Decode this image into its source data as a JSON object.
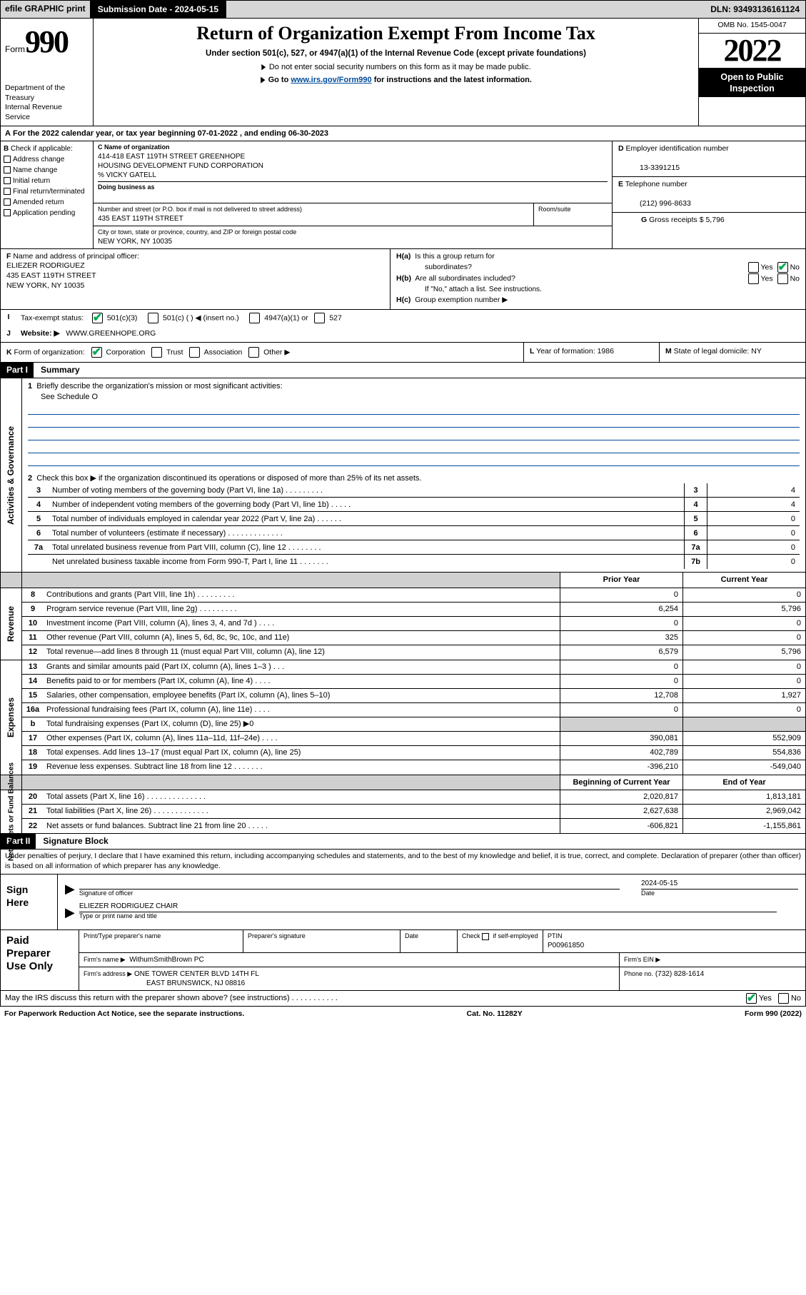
{
  "topbar": {
    "efile": "efile GRAPHIC print",
    "submission": "Submission Date - 2024-05-15",
    "dln": "DLN: 93493136161124"
  },
  "header": {
    "form_prefix": "Form",
    "form_number": "990",
    "dept_1": "Department of the Treasury",
    "dept_2": "Internal Revenue Service",
    "title": "Return of Organization Exempt From Income Tax",
    "sub1": "Under section 501(c), 527, or 4947(a)(1) of the Internal Revenue Code (except private foundations)",
    "sub2": "Do not enter social security numbers on this form as it may be made public.",
    "sub3_a": "Go to ",
    "sub3_link": "www.irs.gov/Form990",
    "sub3_b": " for instructions and the latest information.",
    "omb": "OMB No. 1545-0047",
    "taxyear": "2022",
    "open1": "Open to Public",
    "open2": "Inspection"
  },
  "rowA": {
    "text": "For the 2022 calendar year, or tax year beginning 07-01-2022    , and ending 06-30-2023"
  },
  "boxB": {
    "heading": "Check if applicable:",
    "items": [
      "Address change",
      "Name change",
      "Initial return",
      "Final return/terminated",
      "Amended return",
      "Application pending"
    ]
  },
  "boxC": {
    "lbl_name": "Name of organization",
    "name1": "414-418 EAST 119TH STREET GREENHOPE",
    "name2": "HOUSING DEVELOPMENT FUND CORPORATION",
    "name3": "% VICKY GATELL",
    "dba_lbl": "Doing business as",
    "addr_lbl": "Number and street (or P.O. box if mail is not delivered to street address)",
    "addr": "435 EAST 119TH STREET",
    "room_lbl": "Room/suite",
    "city_lbl": "City or town, state or province, country, and ZIP or foreign postal code",
    "city": "NEW YORK, NY  10035"
  },
  "boxD": {
    "lbl": "Employer identification number",
    "val": "13-3391215"
  },
  "boxE": {
    "lbl": "Telephone number",
    "val": "(212) 996-8633"
  },
  "boxG": {
    "lbl": "Gross receipts $",
    "val": "5,796"
  },
  "boxF": {
    "lbl": "Name and address of principal officer:",
    "name": "ELIEZER RODRIGUEZ",
    "addr1": "435 EAST 119TH STREET",
    "addr2": "NEW YORK, NY  10035"
  },
  "boxH": {
    "a_lbl": "Is this a group return for",
    "a_lbl2": "subordinates?",
    "b_lbl": "Are all subordinates included?",
    "b_note": "If \"No,\" attach a list. See instructions.",
    "c_lbl": "Group exemption number ▶"
  },
  "rowI": {
    "lbl": "Tax-exempt status:",
    "opt1": "501(c)(3)",
    "opt2": "501(c) (   ) ◀ (insert no.)",
    "opt3": "4947(a)(1) or",
    "opt4": "527"
  },
  "rowJ": {
    "lbl": "Website: ▶",
    "val": "WWW.GREENHOPE.ORG"
  },
  "rowK": {
    "lbl": "Form of organization:",
    "opts": [
      "Corporation",
      "Trust",
      "Association",
      "Other ▶"
    ]
  },
  "rowL": {
    "lbl": "Year of formation:",
    "val": "1986"
  },
  "rowM": {
    "lbl": "State of legal domicile:",
    "val": "NY"
  },
  "partI_hdr": "Part I",
  "partI_title": "Summary",
  "governance": {
    "label": "Activities & Governance",
    "line1_lbl": "Briefly describe the organization's mission or most significant activities:",
    "line1_val": "See Schedule O",
    "line2": "Check this box ▶        if  the organization discontinued its operations or disposed of more than 25% of its net assets.",
    "rows": [
      {
        "n": "3",
        "txt": "Number of voting members  of the governing body (Part VI, line 1a)  .   .   .   .   .   .   .   .   .",
        "box": "3",
        "val": "4"
      },
      {
        "n": "4",
        "txt": "Number of independent voting members of the governing body (Part VI, line 1b)   .   .   .   .   .",
        "box": "4",
        "val": "4"
      },
      {
        "n": "5",
        "txt": "Total number of individuals employed in calendar year 2022 (Part V, line 2a)  .   .   .   .   .   .",
        "box": "5",
        "val": "0"
      },
      {
        "n": "6",
        "txt": "Total number of volunteers (estimate if necessary)  .   .   .   .   .   .   .   .   .   .   .   .   .",
        "box": "6",
        "val": "0"
      },
      {
        "n": "7a",
        "txt": "Total unrelated business revenue from Part VIII, column (C), line 12  .   .   .   .   .   .   .   .",
        "box": "7a",
        "val": "0"
      },
      {
        "n": "",
        "txt": "Net unrelated business taxable income from Form 990-T, Part I, line 11  .   .   .   .   .   .   .",
        "box": "7b",
        "val": "0"
      }
    ]
  },
  "col_hdr_prior": "Prior Year",
  "col_hdr_current": "Current Year",
  "revenue": {
    "label": "Revenue",
    "rows": [
      {
        "n": "8",
        "txt": "Contributions and grants (Part VIII, line 1h)   .   .   .   .   .   .   .   .   .",
        "prior": "0",
        "curr": "0"
      },
      {
        "n": "9",
        "txt": "Program service revenue (Part VIII, line 2g)  .   .   .   .   .   .   .   .   .",
        "prior": "6,254",
        "curr": "5,796"
      },
      {
        "n": "10",
        "txt": "Investment income (Part VIII, column (A), lines 3, 4, and 7d )  .   .   .   .",
        "prior": "0",
        "curr": "0"
      },
      {
        "n": "11",
        "txt": "Other revenue (Part VIII, column (A), lines 5, 6d, 8c, 9c, 10c, and 11e)",
        "prior": "325",
        "curr": "0"
      },
      {
        "n": "12",
        "txt": "Total revenue—add lines 8 through 11 (must equal Part VIII, column (A), line 12)",
        "prior": "6,579",
        "curr": "5,796"
      }
    ]
  },
  "expenses": {
    "label": "Expenses",
    "rows": [
      {
        "n": "13",
        "txt": "Grants and similar amounts paid (Part IX, column (A), lines 1–3 )   .   .   .",
        "prior": "0",
        "curr": "0"
      },
      {
        "n": "14",
        "txt": "Benefits paid to or for members (Part IX, column (A), line 4)  .   .   .   .",
        "prior": "0",
        "curr": "0"
      },
      {
        "n": "15",
        "txt": "Salaries, other compensation, employee benefits (Part IX, column (A), lines 5–10)",
        "prior": "12,708",
        "curr": "1,927"
      },
      {
        "n": "16a",
        "txt": "Professional fundraising fees (Part IX, column (A), line 11e)  .   .   .   .",
        "prior": "0",
        "curr": "0"
      },
      {
        "n": "b",
        "txt": "Total fundraising expenses (Part IX, column (D), line 25) ▶0",
        "prior": "",
        "curr": "",
        "grey": true
      },
      {
        "n": "17",
        "txt": "Other expenses (Part IX, column (A), lines 11a–11d, 11f–24e)  .   .   .   .",
        "prior": "390,081",
        "curr": "552,909"
      },
      {
        "n": "18",
        "txt": "Total expenses. Add lines 13–17 (must equal Part IX, column (A), line 25)",
        "prior": "402,789",
        "curr": "554,836"
      },
      {
        "n": "19",
        "txt": "Revenue less expenses. Subtract line 18 from line 12  .   .   .   .   .   .   .",
        "prior": "-396,210",
        "curr": "-549,040"
      }
    ]
  },
  "col_hdr_boy": "Beginning of Current Year",
  "col_hdr_eoy": "End of Year",
  "netassets": {
    "label": "Net Assets or Fund Balances",
    "rows": [
      {
        "n": "20",
        "txt": "Total assets (Part X, line 16)  .   .   .   .   .   .   .   .   .   .   .   .   .   .",
        "prior": "2,020,817",
        "curr": "1,813,181"
      },
      {
        "n": "21",
        "txt": "Total liabilities (Part X, line 26)  .   .   .   .   .   .   .   .   .   .   .   .   .",
        "prior": "2,627,638",
        "curr": "2,969,042"
      },
      {
        "n": "22",
        "txt": "Net assets or fund balances. Subtract line 21 from line 20  .   .   .   .   .",
        "prior": "-606,821",
        "curr": "-1,155,861"
      }
    ]
  },
  "partII_hdr": "Part II",
  "partII_title": "Signature Block",
  "disclaimer": "Under penalties of perjury, I declare that I have examined this return, including accompanying schedules and statements, and to the best of my knowledge and belief, it is true, correct, and complete. Declaration of preparer (other than officer) is based on all information of which preparer has any knowledge.",
  "sign": {
    "here": "Sign Here",
    "sig_lbl": "Signature of officer",
    "date_val": "2024-05-15",
    "date_lbl": "Date",
    "name_val": "ELIEZER RODRIGUEZ  CHAIR",
    "name_lbl": "Type or print name and title"
  },
  "prep": {
    "left": "Paid Preparer Use Only",
    "r1c1_lbl": "Print/Type preparer's name",
    "r1c2_lbl": "Preparer's signature",
    "r1c3_lbl": "Date",
    "r1c4_lbl": "Check         if self-employed",
    "r1c5_lbl": "PTIN",
    "r1c5_val": "P00961850",
    "r2c1_lbl": "Firm's name      ▶",
    "r2c1_val": "WithumSmithBrown PC",
    "r2c2_lbl": "Firm's EIN ▶",
    "r3c1_lbl": "Firm's address ▶",
    "r3c1_val1": "ONE TOWER CENTER BLVD 14TH FL",
    "r3c1_val2": "EAST BRUNSWICK, NJ  08816",
    "r3c2_lbl": "Phone no.",
    "r3c2_val": "(732) 828-1614"
  },
  "irs_discuss": "May the IRS discuss this return with the preparer shown above? (see instructions)   .   .   .   .   .   .   .   .   .   .   .",
  "footer": {
    "left": "For Paperwork Reduction Act Notice, see the separate instructions.",
    "mid": "Cat. No. 11282Y",
    "right": "Form 990 (2022)"
  }
}
